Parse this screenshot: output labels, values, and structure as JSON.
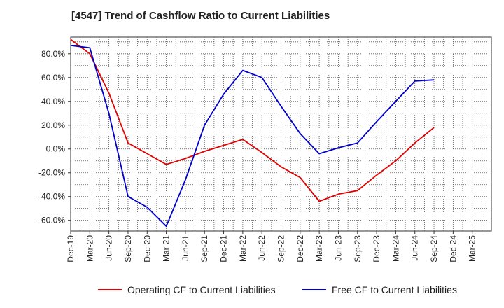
{
  "chart_data": {
    "type": "line",
    "title": "[4547]  Trend of Cashflow Ratio to Current Liabilities",
    "xlabel": "",
    "ylabel": "",
    "x_ticks": [
      "Dec-19",
      "Mar-20",
      "Jun-20",
      "Sep-20",
      "Dec-20",
      "Mar-21",
      "Jun-21",
      "Sep-21",
      "Dec-21",
      "Mar-22",
      "Jun-22",
      "Sep-22",
      "Dec-22",
      "Mar-23",
      "Jun-23",
      "Sep-23",
      "Dec-23",
      "Mar-24",
      "Jun-24",
      "Sep-24",
      "Dec-24",
      "Mar-25"
    ],
    "y_ticks": [
      80,
      60,
      40,
      20,
      0,
      -20,
      -40,
      -60
    ],
    "y_tick_labels": [
      "80.0%",
      "60.0%",
      "40.0%",
      "20.0%",
      "0.0%",
      "-20.0%",
      "-40.0%",
      "-60.0%"
    ],
    "ylim": [
      -69,
      94
    ],
    "grid": true,
    "legend_position": "bottom",
    "series": [
      {
        "name": "Operating CF to Current Liabilities",
        "color": "#e00000",
        "x": [
          "Dec-19",
          "Mar-20",
          "Jun-20",
          "Sep-20",
          "Dec-20",
          "Mar-21",
          "Jun-21",
          "Sep-21",
          "Dec-21",
          "Mar-22",
          "Jun-22",
          "Sep-22",
          "Dec-22",
          "Mar-23",
          "Jun-23",
          "Sep-23",
          "Dec-23",
          "Mar-24",
          "Jun-24",
          "Sep-24"
        ],
        "values": [
          92,
          80,
          47,
          5,
          -4,
          -13,
          -8,
          -2,
          3,
          8,
          -3,
          -15,
          -24,
          -44,
          -38,
          -35,
          -22,
          -10,
          5,
          18
        ]
      },
      {
        "name": "Free CF to Current Liabilities",
        "color": "#0000cc",
        "x": [
          "Dec-19",
          "Mar-20",
          "Jun-20",
          "Sep-20",
          "Dec-20",
          "Mar-21",
          "Jun-21",
          "Sep-21",
          "Dec-21",
          "Mar-22",
          "Jun-22",
          "Sep-22",
          "Dec-22",
          "Mar-23",
          "Jun-23",
          "Sep-23",
          "Dec-23",
          "Mar-24",
          "Jun-24",
          "Sep-24"
        ],
        "values": [
          87,
          85,
          30,
          -40,
          -49,
          -65,
          -26,
          20,
          46,
          66,
          60,
          36,
          13,
          -4,
          1,
          5,
          23,
          40,
          57,
          58
        ]
      }
    ]
  }
}
